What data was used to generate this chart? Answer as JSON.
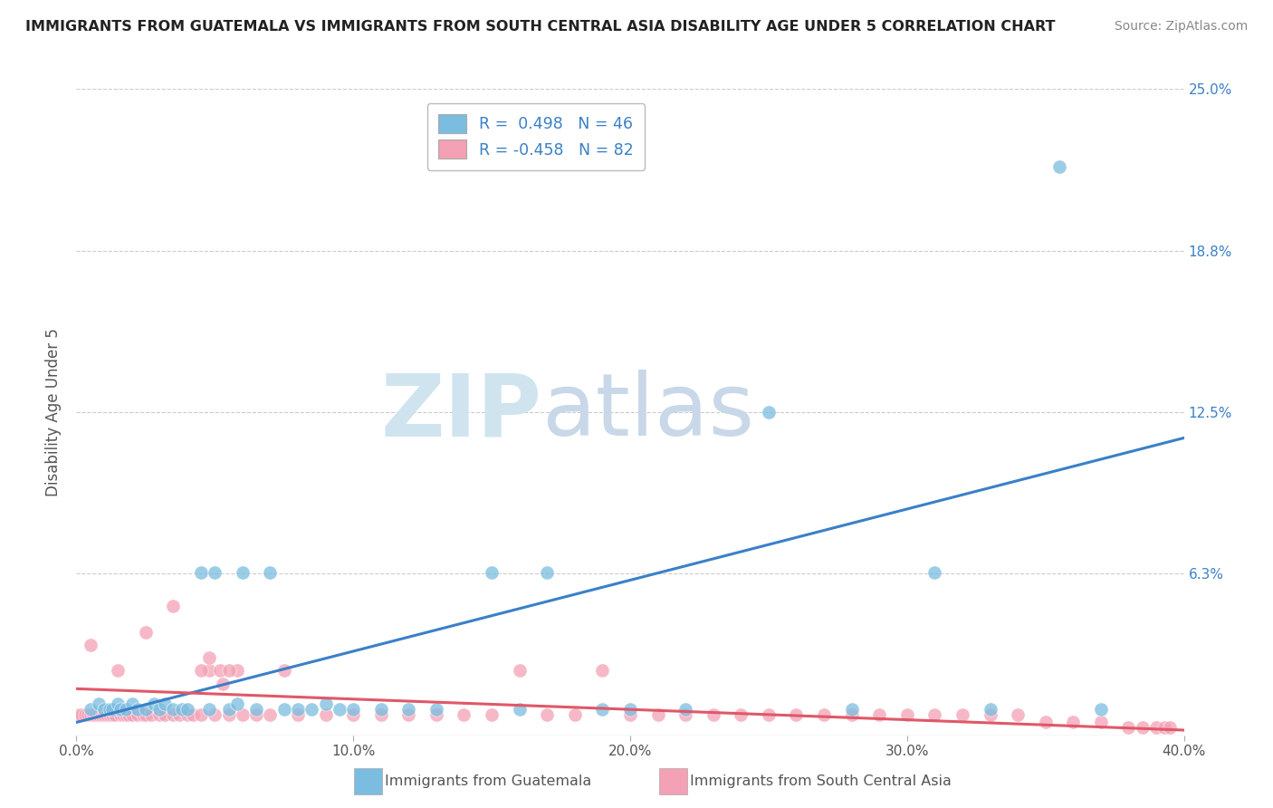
{
  "title": "IMMIGRANTS FROM GUATEMALA VS IMMIGRANTS FROM SOUTH CENTRAL ASIA DISABILITY AGE UNDER 5 CORRELATION CHART",
  "source": "Source: ZipAtlas.com",
  "ylabel": "Disability Age Under 5",
  "legend1_label": "Immigrants from Guatemala",
  "legend2_label": "Immigrants from South Central Asia",
  "R1": 0.498,
  "N1": 46,
  "R2": -0.458,
  "N2": 82,
  "xlim": [
    0.0,
    0.4
  ],
  "ylim": [
    0.0,
    0.25
  ],
  "yticks": [
    0.0,
    0.0625,
    0.125,
    0.1875,
    0.25
  ],
  "ytick_labels": [
    "",
    "6.3%",
    "12.5%",
    "18.8%",
    "25.0%"
  ],
  "xtick_labels": [
    "0.0%",
    "10.0%",
    "20.0%",
    "30.0%",
    "40.0%"
  ],
  "xticks": [
    0.0,
    0.1,
    0.2,
    0.3,
    0.4
  ],
  "color_blue": "#7bbde0",
  "color_pink": "#f4a0b5",
  "color_blue_line": "#3a80c8",
  "color_pink_line": "#e05868",
  "watermark_zip": "ZIP",
  "watermark_atlas": "atlas",
  "watermark_color_zip": "#d0e4f0",
  "watermark_color_atlas": "#c8d8e8",
  "background_color": "#ffffff",
  "grid_color": "#cccccc",
  "title_color": "#222222",
  "source_color": "#888888",
  "axis_label_color": "#555555",
  "tick_label_color_x": "#555555",
  "tick_label_color_y": "#3a80c8",
  "scatter_blue_x": [
    0.005,
    0.008,
    0.01,
    0.012,
    0.013,
    0.015,
    0.016,
    0.018,
    0.02,
    0.022,
    0.025,
    0.028,
    0.03,
    0.032,
    0.035,
    0.038,
    0.04,
    0.045,
    0.048,
    0.05,
    0.055,
    0.058,
    0.06,
    0.065,
    0.07,
    0.075,
    0.08,
    0.085,
    0.09,
    0.095,
    0.1,
    0.11,
    0.12,
    0.13,
    0.15,
    0.16,
    0.17,
    0.19,
    0.2,
    0.22,
    0.25,
    0.28,
    0.31,
    0.33,
    0.355,
    0.37
  ],
  "scatter_blue_y": [
    0.01,
    0.012,
    0.01,
    0.01,
    0.01,
    0.012,
    0.01,
    0.01,
    0.012,
    0.01,
    0.01,
    0.012,
    0.01,
    0.012,
    0.01,
    0.01,
    0.01,
    0.063,
    0.01,
    0.063,
    0.01,
    0.012,
    0.063,
    0.01,
    0.063,
    0.01,
    0.01,
    0.01,
    0.012,
    0.01,
    0.01,
    0.01,
    0.01,
    0.01,
    0.063,
    0.01,
    0.063,
    0.01,
    0.01,
    0.01,
    0.125,
    0.01,
    0.063,
    0.01,
    0.22,
    0.01
  ],
  "scatter_pink_x": [
    0.001,
    0.002,
    0.003,
    0.004,
    0.005,
    0.006,
    0.007,
    0.008,
    0.009,
    0.01,
    0.011,
    0.012,
    0.013,
    0.014,
    0.015,
    0.016,
    0.017,
    0.018,
    0.019,
    0.02,
    0.022,
    0.024,
    0.025,
    0.027,
    0.03,
    0.032,
    0.035,
    0.037,
    0.04,
    0.042,
    0.045,
    0.048,
    0.05,
    0.055,
    0.058,
    0.06,
    0.065,
    0.07,
    0.075,
    0.08,
    0.09,
    0.1,
    0.11,
    0.12,
    0.13,
    0.14,
    0.15,
    0.16,
    0.17,
    0.18,
    0.19,
    0.2,
    0.21,
    0.22,
    0.23,
    0.24,
    0.25,
    0.26,
    0.27,
    0.28,
    0.29,
    0.3,
    0.31,
    0.32,
    0.33,
    0.34,
    0.35,
    0.36,
    0.37,
    0.38,
    0.385,
    0.39,
    0.393,
    0.395,
    0.005,
    0.025,
    0.035,
    0.045,
    0.048,
    0.052,
    0.053,
    0.055
  ],
  "scatter_pink_y": [
    0.008,
    0.008,
    0.008,
    0.008,
    0.008,
    0.008,
    0.008,
    0.008,
    0.008,
    0.008,
    0.008,
    0.008,
    0.008,
    0.008,
    0.025,
    0.008,
    0.008,
    0.008,
    0.008,
    0.008,
    0.008,
    0.008,
    0.008,
    0.008,
    0.008,
    0.008,
    0.008,
    0.008,
    0.008,
    0.008,
    0.008,
    0.025,
    0.008,
    0.008,
    0.025,
    0.008,
    0.008,
    0.008,
    0.025,
    0.008,
    0.008,
    0.008,
    0.008,
    0.008,
    0.008,
    0.008,
    0.008,
    0.025,
    0.008,
    0.008,
    0.025,
    0.008,
    0.008,
    0.008,
    0.008,
    0.008,
    0.008,
    0.008,
    0.008,
    0.008,
    0.008,
    0.008,
    0.008,
    0.008,
    0.008,
    0.008,
    0.005,
    0.005,
    0.005,
    0.003,
    0.003,
    0.003,
    0.003,
    0.003,
    0.035,
    0.04,
    0.05,
    0.025,
    0.03,
    0.025,
    0.02,
    0.025
  ],
  "blue_line_x": [
    0.0,
    0.4
  ],
  "blue_line_y": [
    0.005,
    0.115
  ],
  "pink_line_x": [
    0.0,
    0.4
  ],
  "pink_line_y": [
    0.018,
    0.002
  ]
}
